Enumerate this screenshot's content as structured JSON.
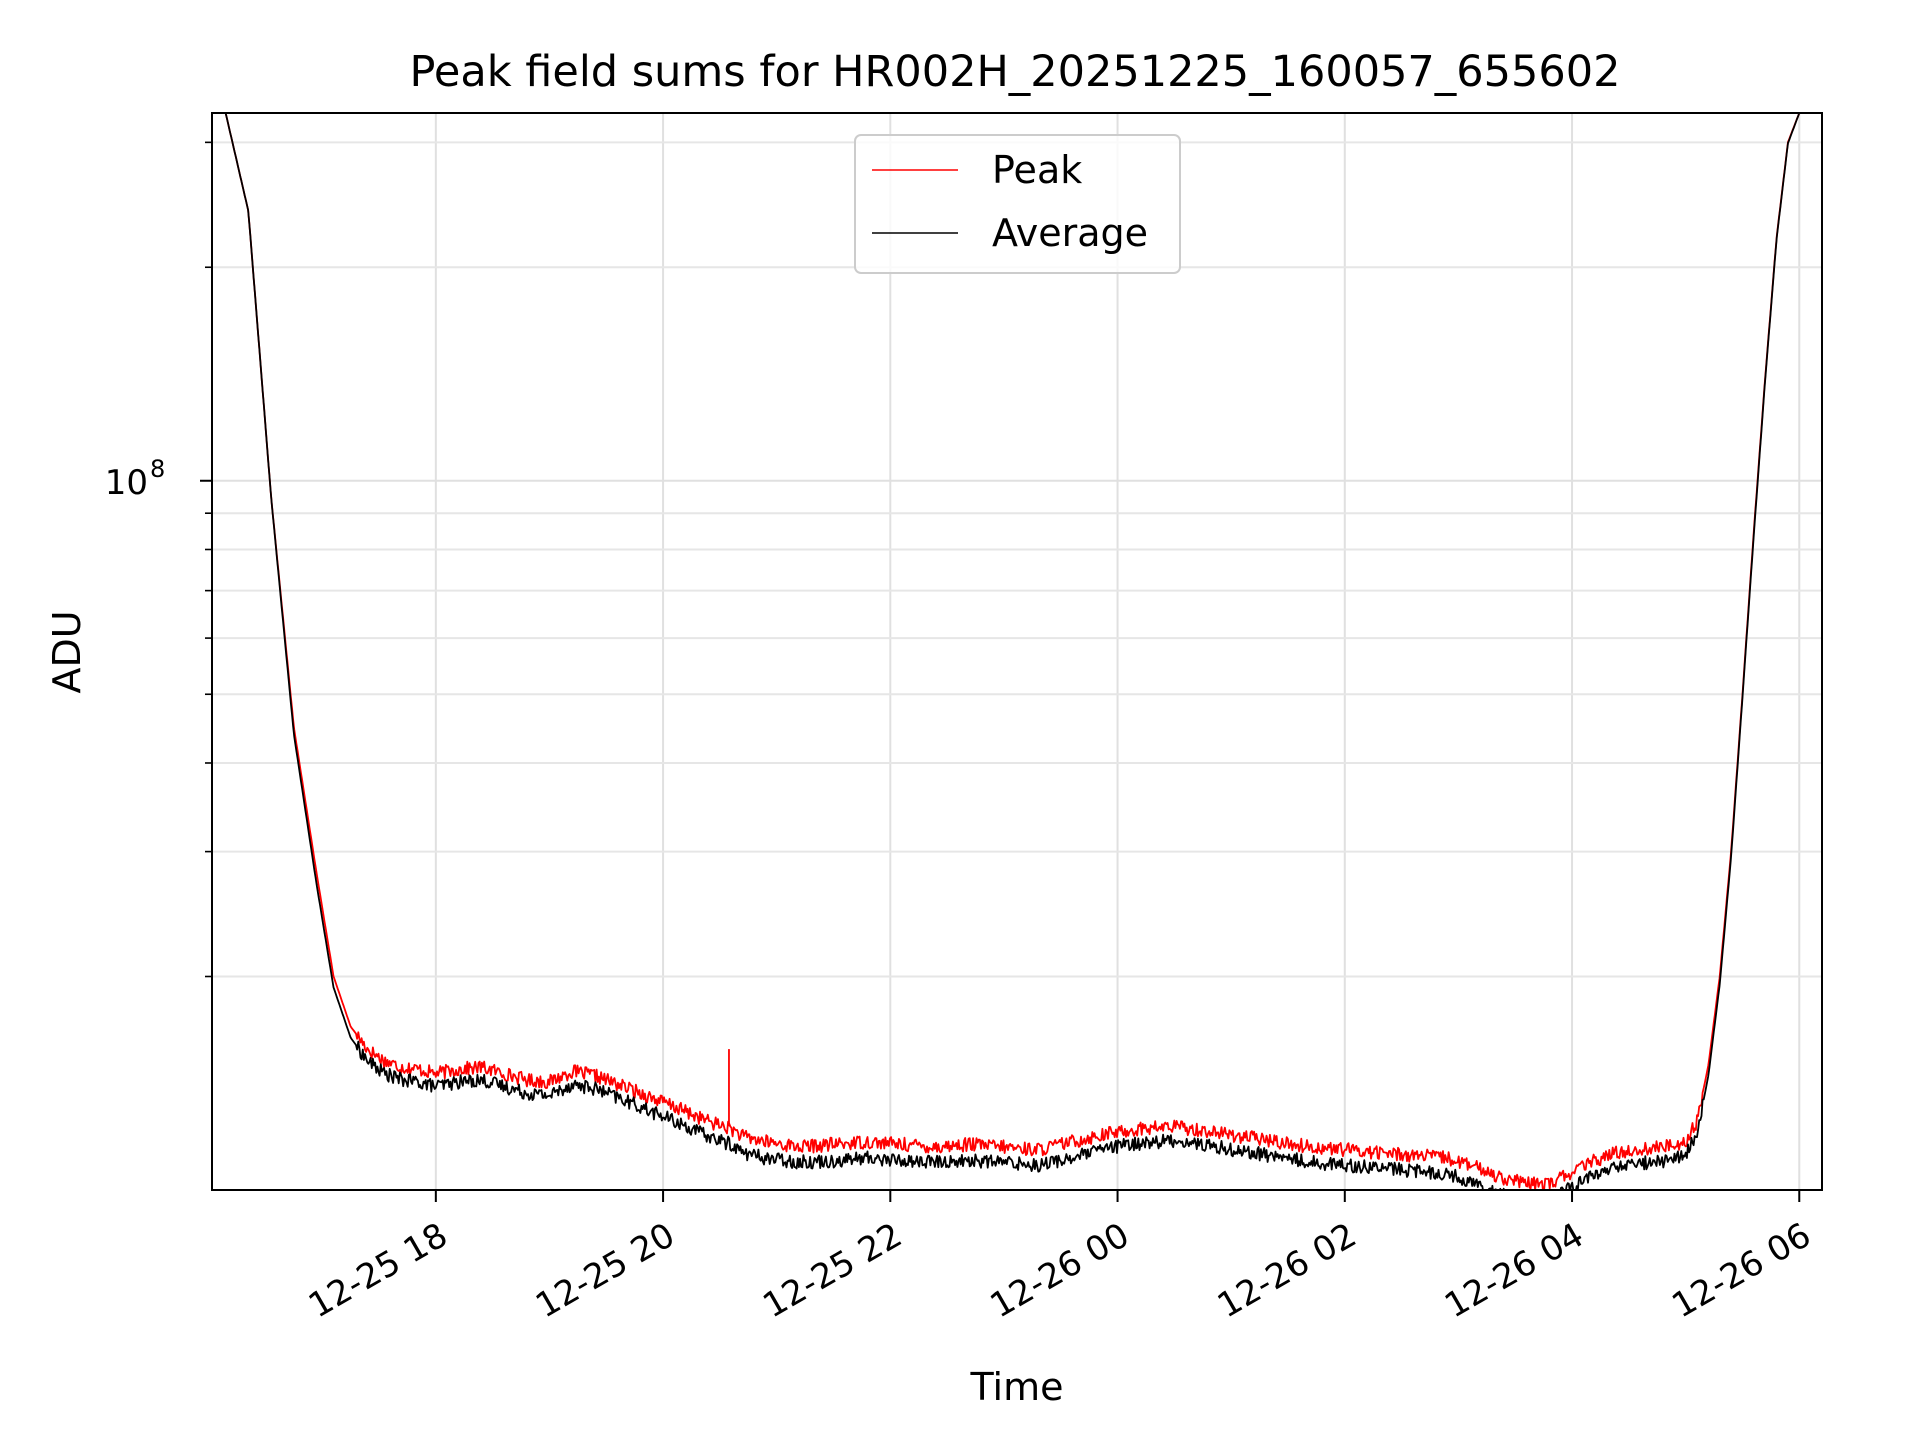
{
  "chart_data": {
    "type": "line",
    "title": "Peak field sums for HR002H_20251225_160057_655602",
    "xlabel": "Time",
    "ylabel": "ADU",
    "yscale": "log",
    "ylim": [
      10000000,
      330000000
    ],
    "xlim_hours": [
      16.03,
      30.2
    ],
    "x_units": "hours since 12-25 00:00",
    "x_ticks": [
      {
        "value": 18,
        "label": "12-25 18"
      },
      {
        "value": 20,
        "label": "12-25 20"
      },
      {
        "value": 22,
        "label": "12-25 22"
      },
      {
        "value": 24,
        "label": "12-26 00"
      },
      {
        "value": 26,
        "label": "12-26 02"
      },
      {
        "value": 28,
        "label": "12-26 04"
      },
      {
        "value": 30,
        "label": "12-26 06"
      }
    ],
    "y_major_ticks": [
      {
        "value": 100000000,
        "base": "10",
        "exp": "8"
      }
    ],
    "y_minor_ticks": [
      20000000,
      30000000,
      40000000,
      50000000,
      60000000,
      70000000,
      80000000,
      90000000,
      200000000,
      300000000
    ],
    "grid": true,
    "legend_position": "top-center",
    "series": [
      {
        "name": "Peak",
        "color": "#ff0000",
        "x": [
          16.15,
          16.35,
          16.55,
          16.75,
          16.95,
          17.1,
          17.25,
          17.4,
          17.55,
          17.7,
          17.85,
          18.0,
          18.2,
          18.4,
          18.6,
          18.8,
          19.0,
          19.2,
          19.4,
          19.6,
          19.8,
          20.0,
          20.2,
          20.4,
          20.6,
          20.7,
          20.9,
          21.2,
          21.5,
          21.8,
          22.1,
          22.4,
          22.7,
          23.0,
          23.3,
          23.6,
          23.9,
          24.2,
          24.5,
          24.8,
          25.1,
          25.4,
          25.7,
          26.0,
          26.3,
          26.6,
          26.9,
          27.2,
          27.4,
          27.6,
          27.8,
          28.0,
          28.2,
          28.4,
          28.6,
          28.8,
          29.0,
          29.1,
          29.2,
          29.3,
          29.4,
          29.5,
          29.6,
          29.7,
          29.8,
          29.9,
          30.0
        ],
        "values": [
          330000000,
          240000000,
          95000000,
          45000000,
          28000000,
          20000000,
          17000000,
          15800000,
          15200000,
          14900000,
          14800000,
          14600000,
          14800000,
          14900000,
          14600000,
          14300000,
          14200000,
          14700000,
          14500000,
          14100000,
          13700000,
          13300000,
          12900000,
          12500000,
          12200000,
          11900000,
          11700000,
          11500000,
          11600000,
          11700000,
          11600000,
          11500000,
          11600000,
          11500000,
          11400000,
          11700000,
          12000000,
          12200000,
          12300000,
          12100000,
          11900000,
          11700000,
          11500000,
          11400000,
          11300000,
          11200000,
          11100000,
          10700000,
          10400000,
          10200000,
          10200000,
          10600000,
          11000000,
          11300000,
          11400000,
          11500000,
          11700000,
          12500000,
          15000000,
          20000000,
          30000000,
          50000000,
          85000000,
          140000000,
          220000000,
          300000000,
          330000000
        ]
      },
      {
        "name": "Average",
        "color": "#000000",
        "x": [
          16.15,
          16.35,
          16.55,
          16.75,
          16.95,
          17.1,
          17.25,
          17.4,
          17.55,
          17.7,
          17.85,
          18.0,
          18.2,
          18.4,
          18.6,
          18.8,
          19.0,
          19.2,
          19.4,
          19.6,
          19.8,
          20.0,
          20.2,
          20.4,
          20.6,
          20.7,
          20.9,
          21.2,
          21.5,
          21.8,
          22.1,
          22.4,
          22.7,
          23.0,
          23.3,
          23.6,
          23.9,
          24.2,
          24.5,
          24.8,
          25.1,
          25.4,
          25.7,
          26.0,
          26.3,
          26.6,
          26.9,
          27.2,
          27.4,
          27.6,
          27.8,
          28.0,
          28.2,
          28.4,
          28.6,
          28.8,
          29.0,
          29.1,
          29.2,
          29.3,
          29.4,
          29.5,
          29.6,
          29.7,
          29.8,
          29.9,
          30.0
        ],
        "values": [
          330000000,
          240000000,
          95000000,
          44000000,
          27000000,
          19300000,
          16400000,
          15200000,
          14600000,
          14300000,
          14200000,
          14000000,
          14200000,
          14300000,
          14000000,
          13700000,
          13600000,
          14100000,
          13900000,
          13500000,
          13100000,
          12700000,
          12300000,
          11900000,
          11600000,
          11300000,
          11100000,
          10950000,
          11000000,
          11100000,
          11000000,
          10950000,
          11000000,
          10950000,
          10850000,
          11100000,
          11450000,
          11650000,
          11750000,
          11550000,
          11350000,
          11150000,
          10950000,
          10850000,
          10750000,
          10650000,
          10550000,
          10150000,
          9900000,
          9700000,
          9700000,
          10100000,
          10500000,
          10800000,
          10900000,
          11000000,
          11200000,
          12000000,
          14500000,
          19500000,
          29500000,
          49500000,
          84000000,
          139000000,
          219000000,
          299000000,
          330000000
        ]
      }
    ],
    "annotations": [
      {
        "type": "spike",
        "series": "Peak",
        "x": 20.58,
        "y_base": 12300000,
        "y_peak": 15800000
      }
    ]
  }
}
